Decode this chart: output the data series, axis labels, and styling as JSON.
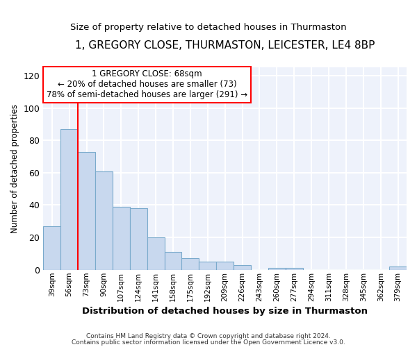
{
  "title": "1, GREGORY CLOSE, THURMASTON, LEICESTER, LE4 8BP",
  "subtitle": "Size of property relative to detached houses in Thurmaston",
  "xlabel": "Distribution of detached houses by size in Thurmaston",
  "ylabel": "Number of detached properties",
  "bar_color": "#c8d8ee",
  "bar_edge_color": "#7aaacc",
  "background_color": "#eef2fb",
  "grid_color": "#ffffff",
  "categories": [
    "39sqm",
    "56sqm",
    "73sqm",
    "90sqm",
    "107sqm",
    "124sqm",
    "141sqm",
    "158sqm",
    "175sqm",
    "192sqm",
    "209sqm",
    "226sqm",
    "243sqm",
    "260sqm",
    "277sqm",
    "294sqm",
    "311sqm",
    "328sqm",
    "345sqm",
    "362sqm",
    "379sqm"
  ],
  "values": [
    27,
    87,
    73,
    61,
    39,
    38,
    20,
    11,
    7,
    5,
    5,
    3,
    0,
    1,
    1,
    0,
    0,
    0,
    0,
    0,
    2
  ],
  "ylim": [
    0,
    125
  ],
  "yticks": [
    0,
    20,
    40,
    60,
    80,
    100,
    120
  ],
  "red_line_x": 2.0,
  "annotation_title": "1 GREGORY CLOSE: 68sqm",
  "annotation_line1": "← 20% of detached houses are smaller (73)",
  "annotation_line2": "78% of semi-detached houses are larger (291) →",
  "footer_line1": "Contains HM Land Registry data © Crown copyright and database right 2024.",
  "footer_line2": "Contains public sector information licensed under the Open Government Licence v3.0."
}
